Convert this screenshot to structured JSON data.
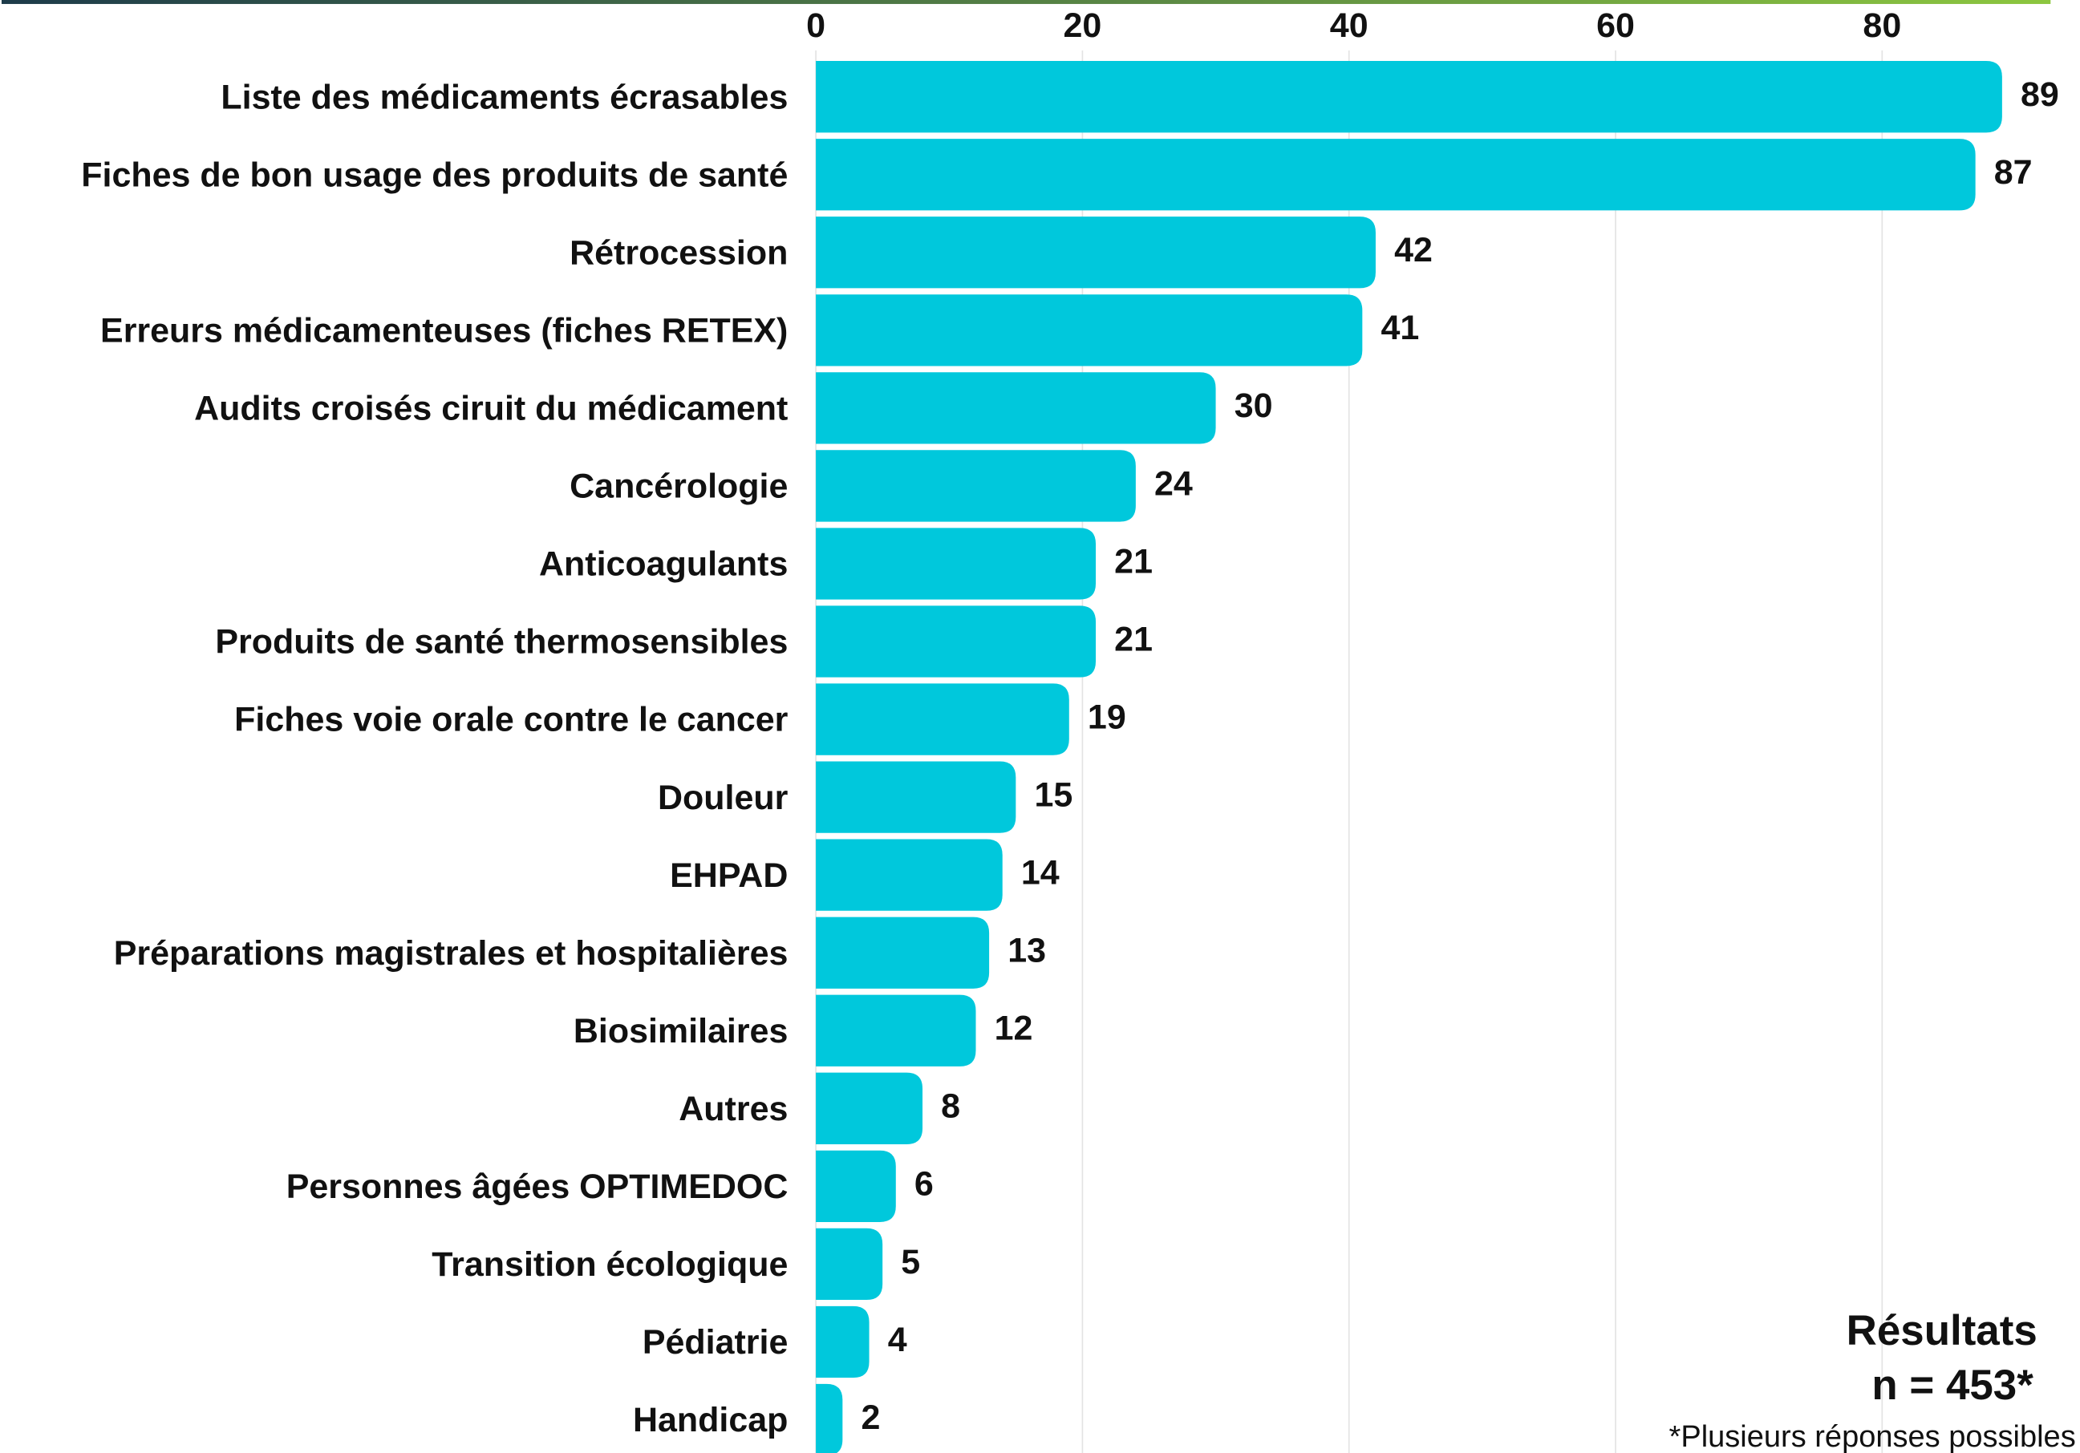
{
  "chart_data": {
    "type": "bar",
    "orientation": "horizontal",
    "categories": [
      "Liste des médicaments écrasables",
      "Fiches de bon usage des produits de santé",
      "Rétrocession",
      "Erreurs médicamenteuses (fiches RETEX)",
      "Audits croisés ciruit du médicament",
      "Cancérologie",
      "Anticoagulants",
      "Produits de santé thermosensibles",
      "Fiches voie orale contre le cancer",
      "Douleur",
      "EHPAD",
      "Préparations magistrales et hospitalières",
      "Biosimilaires",
      "Autres",
      "Personnes âgées OPTIMEDOC",
      "Transition écologique",
      "Pédiatrie",
      "Handicap"
    ],
    "values": [
      89,
      87,
      42,
      41,
      30,
      24,
      21,
      21,
      19,
      15,
      14,
      13,
      12,
      8,
      6,
      5,
      4,
      2
    ],
    "color": "#00c8dc",
    "xlim": [
      0,
      92
    ],
    "xticks": [
      0,
      20,
      40,
      60,
      80
    ],
    "grid": true,
    "annotations": [
      "Résultats",
      "n = 453*",
      "*Plusieurs réponses possibles"
    ]
  }
}
